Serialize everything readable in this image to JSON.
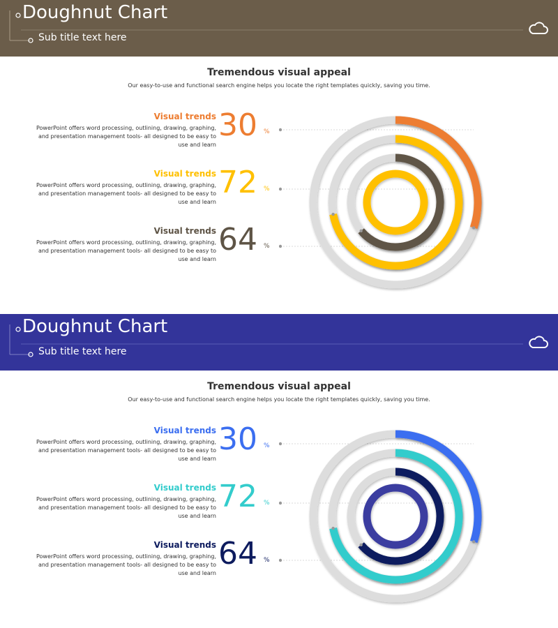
{
  "slides": [
    {
      "header": {
        "title": "Doughnut Chart",
        "subtitle": "Sub title text here",
        "bg": "#6b5d4a",
        "icon": "cloud-icon"
      },
      "section": {
        "title": "Tremendous visual appeal",
        "desc": "Our easy-to-use and functional search engine helps you locate the right templates quickly, saving you time."
      },
      "items": [
        {
          "label": "Visual trends",
          "value": "30",
          "unit": "%",
          "desc": "PowerPoint offers word processing, outlining, drawing, graphing, and presentation management tools- all designed to be easy to use and learn",
          "color": "#ed7d31"
        },
        {
          "label": "Visual trends",
          "value": "72",
          "unit": "%",
          "desc": "PowerPoint offers word processing, outlining, drawing, graphing, and presentation management tools- all designed to be easy to use and learn",
          "color": "#ffc000"
        },
        {
          "label": "Visual trends",
          "value": "64",
          "unit": "%",
          "desc": "PowerPoint offers word processing, outlining, drawing, graphing, and presentation management tools- all designed to be easy to use and learn",
          "color": "#5e5446"
        }
      ],
      "chart_data": {
        "type": "pie",
        "subtype": "doughnut",
        "series": [
          {
            "values": [
              30
            ],
            "color": "#ed7d31"
          },
          {
            "values": [
              72
            ],
            "color": "#ffc000"
          },
          {
            "values": [
              64
            ],
            "color": "#5e5446"
          }
        ],
        "inner_ring": {
          "values": [
            100
          ],
          "color": "#ffc000"
        },
        "track_color": "#dddddd"
      }
    },
    {
      "header": {
        "title": "Doughnut Chart",
        "subtitle": "Sub title text here",
        "bg": "#33349a",
        "icon": "cloud-icon"
      },
      "section": {
        "title": "Tremendous visual appeal",
        "desc": "Our easy-to-use and functional search engine helps you locate the right templates quickly, saving you time."
      },
      "items": [
        {
          "label": "Visual trends",
          "value": "30",
          "unit": "%",
          "desc": "PowerPoint offers word processing, outlining, drawing, graphing, and presentation management tools- all designed to be easy to use and learn",
          "color": "#3b6ef0"
        },
        {
          "label": "Visual trends",
          "value": "72",
          "unit": "%",
          "desc": "PowerPoint offers word processing, outlining, drawing, graphing, and presentation management tools- all designed to be easy to use and learn",
          "color": "#33cccc"
        },
        {
          "label": "Visual trends",
          "value": "64",
          "unit": "%",
          "desc": "PowerPoint offers word processing, outlining, drawing, graphing, and presentation management tools- all designed to be easy to use and learn",
          "color": "#0d1b5e"
        }
      ],
      "chart_data": {
        "type": "pie",
        "subtype": "doughnut",
        "series": [
          {
            "values": [
              30
            ],
            "color": "#3b6ef0"
          },
          {
            "values": [
              72
            ],
            "color": "#33cccc"
          },
          {
            "values": [
              64
            ],
            "color": "#0d1b5e"
          }
        ],
        "inner_ring": {
          "values": [
            100
          ],
          "color": "#3a3ca0"
        },
        "track_color": "#dddddd"
      }
    }
  ]
}
